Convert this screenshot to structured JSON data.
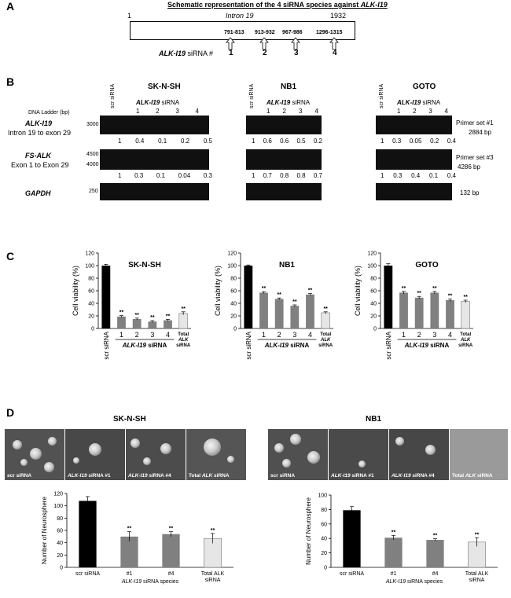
{
  "panelA": {
    "letter": "A",
    "title": "Schematic representation of the 4 siRNA species against ",
    "title_gene": "ALK-I19",
    "start": "1",
    "intron": "Intron 19",
    "end": "1932",
    "sites": [
      "791-813",
      "913-932",
      "967-986",
      "1296-1315"
    ],
    "numbers": [
      "1",
      "2",
      "3",
      "4"
    ],
    "label_gene": "ALK-I19",
    "label_rest": " siRNA #"
  },
  "panelB": {
    "letter": "B",
    "ladder_label": "DNA Ladder (bp)",
    "row_gene1": "ALK-I19",
    "row_sub1": "Intron 19 to exon 29",
    "row_gene2": "FS-ALK",
    "row_sub2": "Exon 1 to Exon 29",
    "row_gene3": "GAPDH",
    "ladder_3000": "3000",
    "ladder_4500": "4500",
    "ladder_4000": "4000",
    "ladder_250": "250",
    "scr": "scr siRNA",
    "sirna_gene": "ALK-I19",
    "sirna_word": " siRNA",
    "lanes": [
      "1",
      "2",
      "3",
      "4"
    ],
    "cells": [
      {
        "name": "SK-N-SH",
        "q1": [
          "1",
          "0.4",
          "0.1",
          "0.2",
          "0.5"
        ],
        "q2": [
          "1",
          "0.3",
          "0.1",
          "0.04",
          "0.3"
        ]
      },
      {
        "name": "NB1",
        "q1": [
          "1",
          "0.6",
          "0.6",
          "0.5",
          "0.2"
        ],
        "q2": [
          "1",
          "0.7",
          "0.8",
          "0.8",
          "0.7"
        ]
      },
      {
        "name": "GOTO",
        "q1": [
          "1",
          "0.3",
          "0.05",
          "0.2",
          "0.4"
        ],
        "q2": [
          "1",
          "0.3",
          "0.4",
          "0.1",
          "0.4"
        ]
      }
    ],
    "primer1": "Primer set #1",
    "primer1_bp": "2884 bp",
    "primer3": "Primer set #3",
    "primer3_bp": "4286  bp",
    "gapdh_bp": "132 bp"
  },
  "panelC": {
    "letter": "C"
  },
  "panelD": {
    "letter": "D",
    "cell1": "SK-N-SH",
    "cell2": "NB1",
    "micro_labels": [
      {
        "plain": "scr siRNA"
      },
      {
        "gene": "ALK-I19",
        "rest": " siRNA #1"
      },
      {
        "gene": "ALK-I19",
        "rest": " siRNA #4"
      },
      {
        "pre": "Total ",
        "gene": "ALK",
        "rest": " siRNA"
      }
    ]
  },
  "colors": {
    "black_bar": "#000000",
    "gray_bar": "#808080",
    "light_bar": "#e6e6e6",
    "gel": "#101010"
  },
  "chart_data": [
    {
      "type": "bar",
      "title": "SK-N-SH",
      "ylabel": "Cell viability (%)",
      "ylim": [
        0,
        120
      ],
      "yticks": [
        "0",
        "20",
        "40",
        "60",
        "80",
        "100",
        "120"
      ],
      "categories": [
        "scr siRNA",
        "1",
        "2",
        "3",
        "4",
        "Total ALK siRNA"
      ],
      "group_label": "ALK-I19 siRNA",
      "values": [
        100,
        19,
        15,
        11,
        13,
        24
      ],
      "errors": [
        2,
        1.5,
        1.5,
        1.5,
        1.5,
        2.5
      ],
      "significance": [
        "",
        "**",
        "**",
        "**",
        "**",
        "**"
      ]
    },
    {
      "type": "bar",
      "title": "NB1",
      "ylabel": "Cell viability (%)",
      "ylim": [
        0,
        120
      ],
      "yticks": [
        "0",
        "20",
        "40",
        "60",
        "80",
        "100",
        "120"
      ],
      "categories": [
        "scr siRNA",
        "1",
        "2",
        "3",
        "4",
        "Total ALK siRNA"
      ],
      "group_label": "ALK-I19 siRNA",
      "values": [
        100,
        57,
        47,
        36,
        54,
        25
      ],
      "errors": [
        1,
        1.5,
        1.5,
        1.5,
        1.5,
        1.5
      ],
      "significance": [
        "",
        "**",
        "**",
        "**",
        "**",
        "**"
      ]
    },
    {
      "type": "bar",
      "title": "GOTO",
      "ylabel": "Cell viability (%)",
      "ylim": [
        0,
        120
      ],
      "yticks": [
        "0",
        "20",
        "40",
        "60",
        "80",
        "100",
        "120"
      ],
      "categories": [
        "scr siRNA",
        "1",
        "2",
        "3",
        "4",
        "Total ALK siRNA"
      ],
      "group_label": "ALK-I19 siRNA",
      "values": [
        100,
        57,
        49,
        57,
        45,
        43
      ],
      "errors": [
        3,
        2,
        2,
        2,
        2,
        2
      ],
      "significance": [
        "",
        "**",
        "**",
        "**",
        "**",
        "**"
      ]
    },
    {
      "type": "bar",
      "title": "",
      "ylabel": "Number of Neurosphere",
      "ylim": [
        0,
        120
      ],
      "yticks": [
        "0",
        "20",
        "40",
        "60",
        "80",
        "100",
        "120"
      ],
      "categories": [
        "scr siRNA",
        "#1",
        "#4",
        "Total ALK siRNA"
      ],
      "group_label": "ALK-I19 siRNA species",
      "values": [
        108,
        50,
        54,
        47
      ],
      "errors": [
        7,
        8,
        4,
        8
      ],
      "significance": [
        "",
        "**",
        "**",
        "**"
      ]
    },
    {
      "type": "bar",
      "title": "",
      "ylabel": "Number of Neurosphere",
      "ylim": [
        0,
        100
      ],
      "yticks": [
        "0",
        "20",
        "40",
        "60",
        "80",
        "100"
      ],
      "categories": [
        "scr siRNA",
        "#1",
        "#4",
        "Total ALK siRNA"
      ],
      "group_label": "ALK-I19 siRNA species",
      "values": [
        79,
        41,
        38,
        35
      ],
      "errors": [
        5,
        3,
        1.5,
        6
      ],
      "significance": [
        "",
        "**",
        "**",
        "**"
      ]
    }
  ]
}
